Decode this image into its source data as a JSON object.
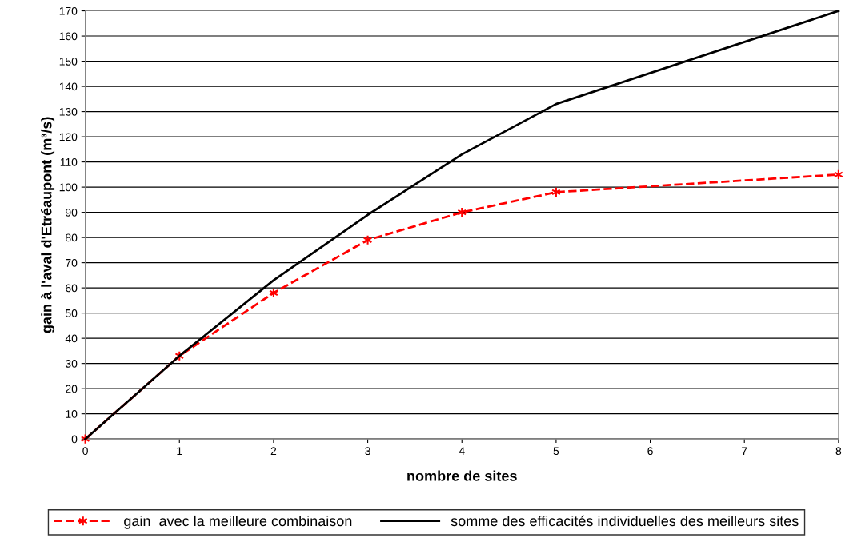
{
  "chart_data": {
    "type": "line",
    "xlabel": "nombre de sites",
    "ylabel": "gain à l'aval d'Etréaupont (m³/s)",
    "series": [
      {
        "name": "gain  avec la meilleure combinaison",
        "color": "#ff0000",
        "x": [
          0,
          1,
          2,
          3,
          4,
          5,
          8
        ],
        "values": [
          0,
          33,
          58,
          79,
          90,
          98,
          105
        ],
        "marker": "cross",
        "line_style": "dashed"
      },
      {
        "name": "somme des efficacités individuelles des meilleurs sites",
        "color": "#000000",
        "x": [
          0,
          1,
          2,
          3,
          4,
          5,
          8
        ],
        "values": [
          0,
          33,
          63,
          89,
          113,
          133,
          170
        ],
        "marker": "none",
        "line_style": "solid"
      }
    ],
    "xlim": [
      0,
      8
    ],
    "xticks": [
      0,
      1,
      2,
      3,
      4,
      5,
      6,
      7,
      8
    ],
    "ylim": [
      0,
      170
    ],
    "yticks": [
      0,
      10,
      20,
      30,
      40,
      50,
      60,
      70,
      80,
      90,
      100,
      110,
      120,
      130,
      140,
      150,
      160,
      170
    ],
    "grid": "y",
    "legend": "bottom"
  }
}
